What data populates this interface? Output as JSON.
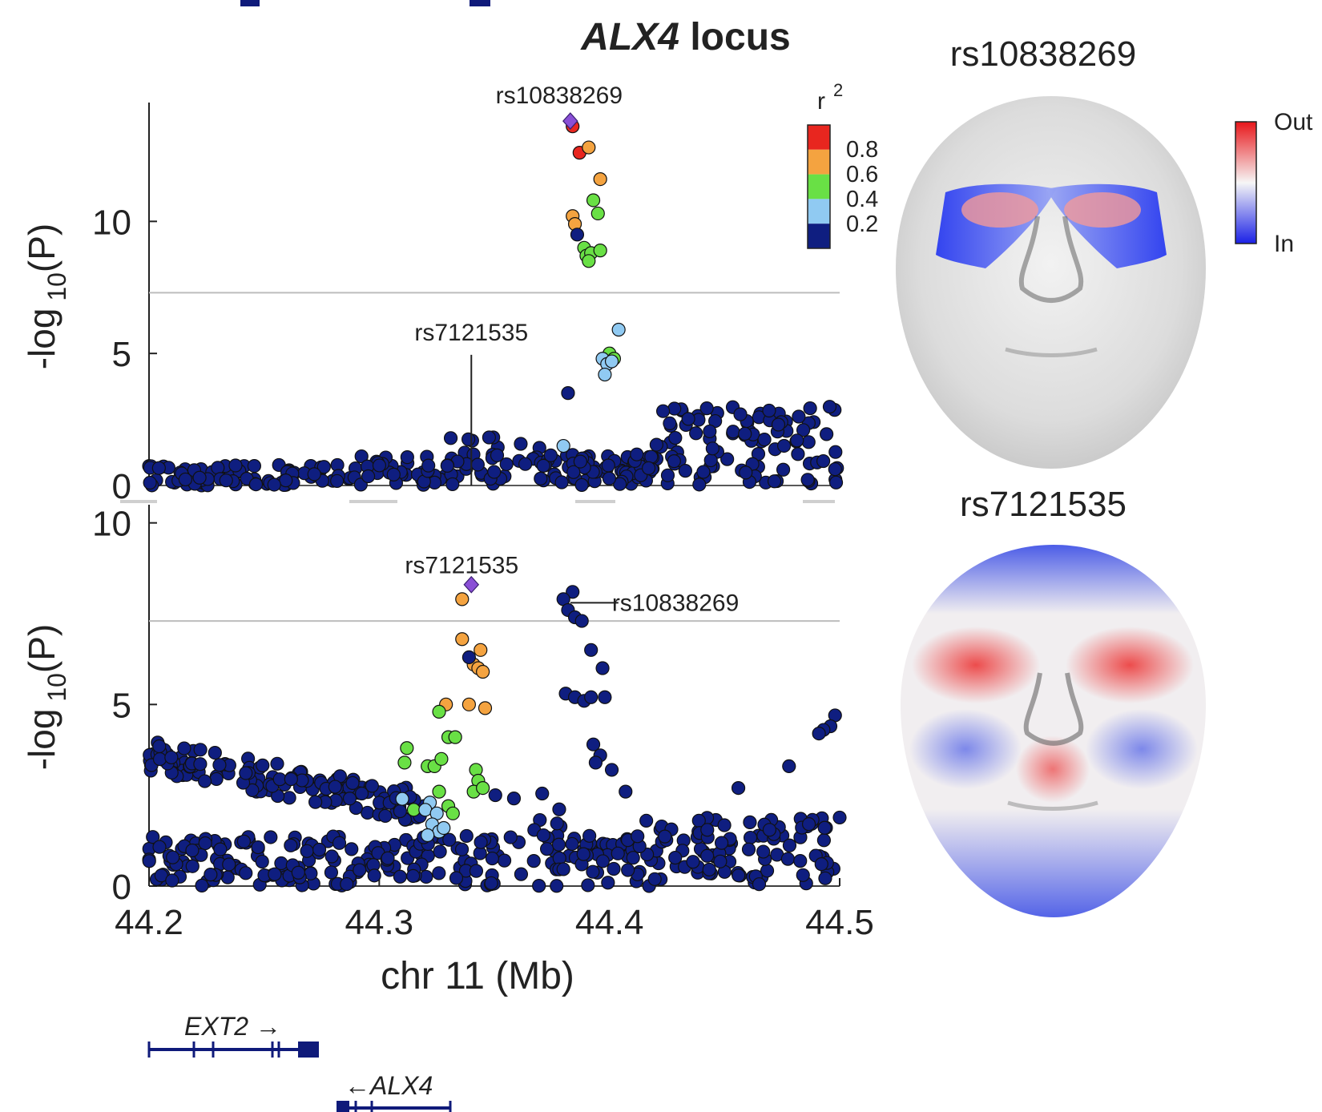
{
  "title": {
    "gene": "ALX4",
    "suffix": " locus"
  },
  "chart_data": [
    {
      "type": "scatter",
      "panel": "top",
      "ylabel": "-log 10(P)",
      "ylim": [
        0,
        14.5
      ],
      "yticks": [
        "0",
        "5",
        "10"
      ],
      "xlim": [
        44.2,
        44.5
      ],
      "threshold": 7.3,
      "lead_snp": {
        "label": "rs10838269",
        "x": 44.383,
        "y": 13.8
      },
      "annotation": {
        "label": "rs7121535",
        "x": 44.34,
        "y_top": 4.95
      },
      "ld_points": [
        {
          "x": 44.384,
          "y": 13.6,
          "r2": 0.9
        },
        {
          "x": 44.387,
          "y": 12.6,
          "r2": 0.9
        },
        {
          "x": 44.391,
          "y": 12.8,
          "r2": 0.7
        },
        {
          "x": 44.396,
          "y": 11.6,
          "r2": 0.7
        },
        {
          "x": 44.393,
          "y": 10.8,
          "r2": 0.5
        },
        {
          "x": 44.395,
          "y": 10.3,
          "r2": 0.5
        },
        {
          "x": 44.384,
          "y": 10.2,
          "r2": 0.7
        },
        {
          "x": 44.385,
          "y": 9.9,
          "r2": 0.7
        },
        {
          "x": 44.386,
          "y": 9.5,
          "r2": 0.1
        },
        {
          "x": 44.389,
          "y": 9.0,
          "r2": 0.5
        },
        {
          "x": 44.39,
          "y": 8.7,
          "r2": 0.5
        },
        {
          "x": 44.392,
          "y": 8.8,
          "r2": 0.5
        },
        {
          "x": 44.396,
          "y": 8.9,
          "r2": 0.5
        },
        {
          "x": 44.391,
          "y": 8.5,
          "r2": 0.5
        },
        {
          "x": 44.404,
          "y": 5.9,
          "r2": 0.3
        },
        {
          "x": 44.4,
          "y": 5.0,
          "r2": 0.5
        },
        {
          "x": 44.397,
          "y": 4.8,
          "r2": 0.3
        },
        {
          "x": 44.402,
          "y": 4.8,
          "r2": 0.5
        },
        {
          "x": 44.399,
          "y": 4.6,
          "r2": 0.3
        },
        {
          "x": 44.401,
          "y": 4.7,
          "r2": 0.3
        },
        {
          "x": 44.398,
          "y": 4.2,
          "r2": 0.3
        },
        {
          "x": 44.382,
          "y": 3.5,
          "r2": 0.1
        },
        {
          "x": 44.38,
          "y": 1.5,
          "r2": 0.3
        }
      ]
    },
    {
      "type": "scatter",
      "panel": "bottom",
      "ylabel": "-log 10(P)",
      "ylim": [
        0,
        10.5
      ],
      "yticks": [
        "0",
        "5",
        "10"
      ],
      "xlim": [
        44.2,
        44.5
      ],
      "xticks": [
        "44.2",
        "44.3",
        "44.4",
        "44.5"
      ],
      "xlabel": "chr 11 (Mb)",
      "threshold": 7.3,
      "lead_snp": {
        "label": "rs7121535",
        "x": 44.34,
        "y": 8.3
      },
      "annotation": {
        "label": "rs10838269",
        "x": 44.383,
        "y": 7.8
      },
      "ld_points": [
        {
          "x": 44.336,
          "y": 7.9,
          "r2": 0.7
        },
        {
          "x": 44.336,
          "y": 6.8,
          "r2": 0.7
        },
        {
          "x": 44.344,
          "y": 6.5,
          "r2": 0.7
        },
        {
          "x": 44.341,
          "y": 6.1,
          "r2": 0.7
        },
        {
          "x": 44.343,
          "y": 6.0,
          "r2": 0.7
        },
        {
          "x": 44.345,
          "y": 5.9,
          "r2": 0.7
        },
        {
          "x": 44.339,
          "y": 6.3,
          "r2": 0.1
        },
        {
          "x": 44.339,
          "y": 5.0,
          "r2": 0.7
        },
        {
          "x": 44.346,
          "y": 4.9,
          "r2": 0.7
        },
        {
          "x": 44.329,
          "y": 5.0,
          "r2": 0.7
        },
        {
          "x": 44.326,
          "y": 4.8,
          "r2": 0.5
        },
        {
          "x": 44.33,
          "y": 4.1,
          "r2": 0.5
        },
        {
          "x": 44.333,
          "y": 4.1,
          "r2": 0.5
        },
        {
          "x": 44.312,
          "y": 3.8,
          "r2": 0.5
        },
        {
          "x": 44.311,
          "y": 3.4,
          "r2": 0.5
        },
        {
          "x": 44.321,
          "y": 3.3,
          "r2": 0.5
        },
        {
          "x": 44.324,
          "y": 3.3,
          "r2": 0.5
        },
        {
          "x": 44.327,
          "y": 3.5,
          "r2": 0.5
        },
        {
          "x": 44.342,
          "y": 3.2,
          "r2": 0.5
        },
        {
          "x": 44.343,
          "y": 2.9,
          "r2": 0.5
        },
        {
          "x": 44.341,
          "y": 2.6,
          "r2": 0.5
        },
        {
          "x": 44.345,
          "y": 2.7,
          "r2": 0.5
        },
        {
          "x": 44.326,
          "y": 2.6,
          "r2": 0.5
        },
        {
          "x": 44.33,
          "y": 2.2,
          "r2": 0.5
        },
        {
          "x": 44.332,
          "y": 2.0,
          "r2": 0.5
        },
        {
          "x": 44.315,
          "y": 2.1,
          "r2": 0.5
        },
        {
          "x": 44.31,
          "y": 2.4,
          "r2": 0.3
        },
        {
          "x": 44.322,
          "y": 2.3,
          "r2": 0.3
        },
        {
          "x": 44.32,
          "y": 2.1,
          "r2": 0.3
        },
        {
          "x": 44.325,
          "y": 2.0,
          "r2": 0.3
        },
        {
          "x": 44.323,
          "y": 1.7,
          "r2": 0.3
        },
        {
          "x": 44.326,
          "y": 1.5,
          "r2": 0.3
        },
        {
          "x": 44.328,
          "y": 1.6,
          "r2": 0.3
        },
        {
          "x": 44.321,
          "y": 1.4,
          "r2": 0.3
        }
      ],
      "extra_peak_points": [
        {
          "x": 44.384,
          "y": 8.1
        },
        {
          "x": 44.38,
          "y": 7.9
        },
        {
          "x": 44.382,
          "y": 7.6
        },
        {
          "x": 44.385,
          "y": 7.4
        },
        {
          "x": 44.388,
          "y": 7.3
        },
        {
          "x": 44.392,
          "y": 6.5
        },
        {
          "x": 44.397,
          "y": 6.0
        },
        {
          "x": 44.381,
          "y": 5.3
        },
        {
          "x": 44.385,
          "y": 5.2
        },
        {
          "x": 44.389,
          "y": 5.1
        },
        {
          "x": 44.392,
          "y": 5.2
        },
        {
          "x": 44.398,
          "y": 5.2
        },
        {
          "x": 44.393,
          "y": 3.9
        },
        {
          "x": 44.396,
          "y": 3.6
        },
        {
          "x": 44.394,
          "y": 3.4
        },
        {
          "x": 44.401,
          "y": 3.2
        },
        {
          "x": 44.407,
          "y": 2.6
        },
        {
          "x": 44.416,
          "y": 1.8
        },
        {
          "x": 44.498,
          "y": 4.7
        },
        {
          "x": 44.496,
          "y": 4.4
        },
        {
          "x": 44.493,
          "y": 4.3
        },
        {
          "x": 44.491,
          "y": 4.2
        },
        {
          "x": 44.478,
          "y": 3.3
        },
        {
          "x": 44.456,
          "y": 2.7
        }
      ]
    }
  ],
  "legend": {
    "title": "r",
    "superscript": "2",
    "ticks": [
      "0.8",
      "0.6",
      "0.4",
      "0.2"
    ],
    "colors": [
      "#e8261f",
      "#f4a340",
      "#69e045",
      "#90caf2",
      "#0f1e80"
    ]
  },
  "genes": [
    {
      "name": "EXT2",
      "arrow": " →",
      "start": 44.2,
      "end": 44.275
    },
    {
      "name": "ALX4",
      "arrow": "←",
      "start": 44.283,
      "end": 44.334
    }
  ],
  "faces": {
    "top_label": "rs10838269",
    "bottom_label": "rs7121535",
    "colorbar_top": "Out",
    "colorbar_bottom": "In"
  }
}
